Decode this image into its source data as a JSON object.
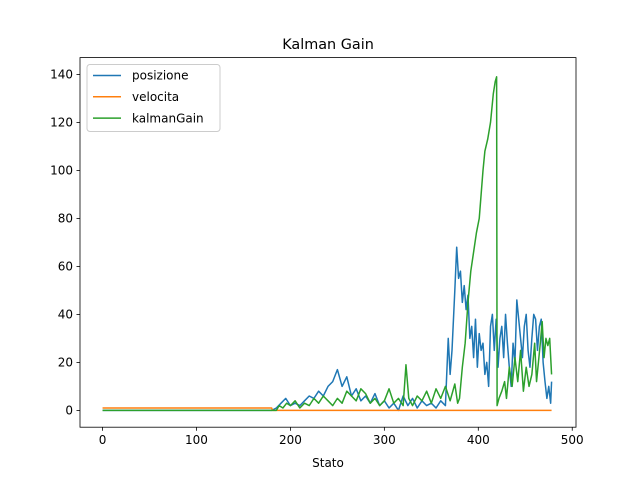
{
  "chart_data": {
    "type": "line",
    "title": "Kalman Gain",
    "xlabel": "Stato",
    "ylabel": "",
    "xlim": [
      -24,
      504
    ],
    "ylim": [
      -7,
      147
    ],
    "xticks": [
      0,
      100,
      200,
      300,
      400,
      500
    ],
    "yticks": [
      0,
      20,
      40,
      60,
      80,
      100,
      120,
      140
    ],
    "grid": false,
    "legend_position": "upper-left",
    "series": [
      {
        "name": "posizione",
        "color": "#1f77b4",
        "points": [
          [
            0,
            0
          ],
          [
            180,
            0
          ],
          [
            185,
            1
          ],
          [
            190,
            3
          ],
          [
            195,
            5
          ],
          [
            200,
            2
          ],
          [
            205,
            3
          ],
          [
            210,
            2
          ],
          [
            215,
            4
          ],
          [
            220,
            6
          ],
          [
            225,
            5
          ],
          [
            230,
            8
          ],
          [
            235,
            6
          ],
          [
            240,
            10
          ],
          [
            245,
            12
          ],
          [
            250,
            17
          ],
          [
            255,
            10
          ],
          [
            260,
            14
          ],
          [
            265,
            6
          ],
          [
            270,
            9
          ],
          [
            275,
            4
          ],
          [
            280,
            6
          ],
          [
            285,
            3
          ],
          [
            290,
            7
          ],
          [
            295,
            2
          ],
          [
            300,
            4
          ],
          [
            305,
            1
          ],
          [
            310,
            3
          ],
          [
            315,
            0
          ],
          [
            320,
            6
          ],
          [
            325,
            2
          ],
          [
            330,
            5
          ],
          [
            335,
            1
          ],
          [
            340,
            4
          ],
          [
            345,
            2
          ],
          [
            350,
            3
          ],
          [
            355,
            1
          ],
          [
            360,
            4
          ],
          [
            365,
            2
          ],
          [
            368,
            30
          ],
          [
            370,
            15
          ],
          [
            372,
            25
          ],
          [
            375,
            50
          ],
          [
            377,
            68
          ],
          [
            379,
            55
          ],
          [
            381,
            58
          ],
          [
            383,
            45
          ],
          [
            385,
            52
          ],
          [
            387,
            42
          ],
          [
            389,
            48
          ],
          [
            391,
            30
          ],
          [
            393,
            35
          ],
          [
            395,
            22
          ],
          [
            397,
            38
          ],
          [
            399,
            18
          ],
          [
            401,
            32
          ],
          [
            403,
            25
          ],
          [
            405,
            28
          ],
          [
            407,
            15
          ],
          [
            409,
            20
          ],
          [
            411,
            10
          ],
          [
            413,
            35
          ],
          [
            415,
            40
          ],
          [
            417,
            25
          ],
          [
            419,
            38
          ],
          [
            421,
            18
          ],
          [
            423,
            30
          ],
          [
            425,
            35
          ],
          [
            427,
            22
          ],
          [
            429,
            40
          ],
          [
            431,
            28
          ],
          [
            433,
            18
          ],
          [
            435,
            10
          ],
          [
            437,
            28
          ],
          [
            439,
            20
          ],
          [
            441,
            46
          ],
          [
            443,
            38
          ],
          [
            445,
            30
          ],
          [
            447,
            22
          ],
          [
            449,
            35
          ],
          [
            451,
            40
          ],
          [
            453,
            25
          ],
          [
            455,
            18
          ],
          [
            457,
            30
          ],
          [
            459,
            40
          ],
          [
            461,
            38
          ],
          [
            463,
            25
          ],
          [
            465,
            35
          ],
          [
            467,
            38
          ],
          [
            469,
            20
          ],
          [
            471,
            12
          ],
          [
            473,
            5
          ],
          [
            475,
            10
          ],
          [
            477,
            3
          ],
          [
            478,
            12
          ]
        ]
      },
      {
        "name": "velocita",
        "color": "#ff7f0e",
        "points": [
          [
            0,
            1
          ],
          [
            180,
            1
          ],
          [
            181,
            0
          ],
          [
            478,
            0
          ]
        ]
      },
      {
        "name": "kalmanGain",
        "color": "#2ca02c",
        "points": [
          [
            0,
            0
          ],
          [
            185,
            0
          ],
          [
            188,
            2
          ],
          [
            192,
            1
          ],
          [
            196,
            3
          ],
          [
            200,
            2
          ],
          [
            205,
            4
          ],
          [
            210,
            1
          ],
          [
            215,
            3
          ],
          [
            220,
            2
          ],
          [
            225,
            5
          ],
          [
            230,
            3
          ],
          [
            235,
            6
          ],
          [
            240,
            4
          ],
          [
            245,
            2
          ],
          [
            250,
            5
          ],
          [
            255,
            3
          ],
          [
            260,
            8
          ],
          [
            265,
            6
          ],
          [
            270,
            4
          ],
          [
            275,
            9
          ],
          [
            280,
            7
          ],
          [
            285,
            3
          ],
          [
            290,
            5
          ],
          [
            295,
            2
          ],
          [
            300,
            4
          ],
          [
            305,
            9
          ],
          [
            310,
            3
          ],
          [
            315,
            5
          ],
          [
            320,
            2
          ],
          [
            323,
            19
          ],
          [
            326,
            5
          ],
          [
            330,
            2
          ],
          [
            335,
            6
          ],
          [
            340,
            4
          ],
          [
            345,
            8
          ],
          [
            350,
            3
          ],
          [
            355,
            9
          ],
          [
            360,
            5
          ],
          [
            365,
            10
          ],
          [
            370,
            4
          ],
          [
            375,
            11
          ],
          [
            378,
            3
          ],
          [
            380,
            5
          ],
          [
            383,
            18
          ],
          [
            386,
            28
          ],
          [
            389,
            45
          ],
          [
            392,
            58
          ],
          [
            395,
            66
          ],
          [
            398,
            74
          ],
          [
            401,
            80
          ],
          [
            403,
            90
          ],
          [
            405,
            100
          ],
          [
            407,
            108
          ],
          [
            410,
            113
          ],
          [
            413,
            120
          ],
          [
            416,
            132
          ],
          [
            418,
            137
          ],
          [
            419.5,
            139
          ],
          [
            420,
            2
          ],
          [
            422,
            5
          ],
          [
            425,
            8
          ],
          [
            428,
            12
          ],
          [
            430,
            5
          ],
          [
            433,
            18
          ],
          [
            436,
            10
          ],
          [
            439,
            22
          ],
          [
            442,
            12
          ],
          [
            445,
            25
          ],
          [
            448,
            8
          ],
          [
            451,
            18
          ],
          [
            454,
            10
          ],
          [
            457,
            15
          ],
          [
            460,
            28
          ],
          [
            462,
            12
          ],
          [
            464,
            20
          ],
          [
            466,
            28
          ],
          [
            468,
            37
          ],
          [
            470,
            22
          ],
          [
            472,
            30
          ],
          [
            474,
            27
          ],
          [
            476,
            30
          ],
          [
            478,
            15
          ]
        ]
      }
    ]
  }
}
